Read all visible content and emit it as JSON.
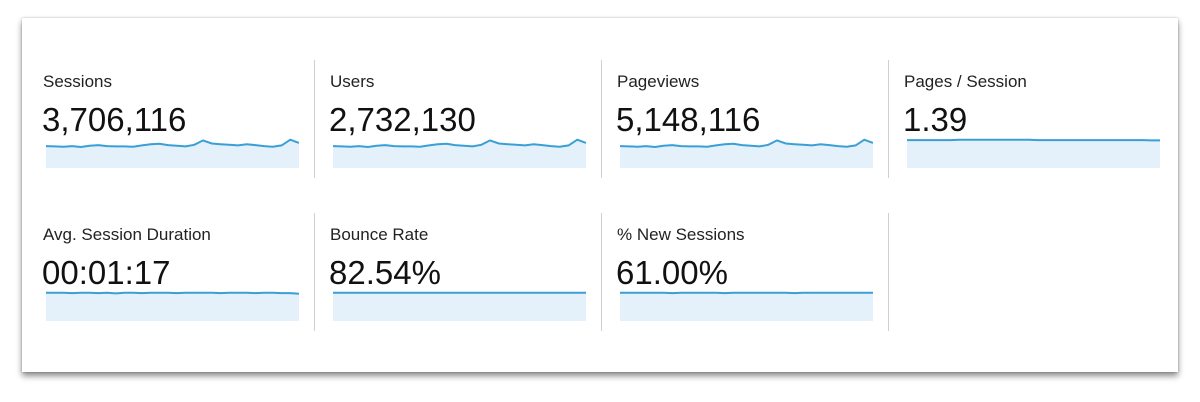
{
  "metrics": [
    {
      "label": "Sessions",
      "value": "3,706,116",
      "trend": [
        66,
        65,
        64,
        66,
        63,
        67,
        69,
        66,
        65,
        65,
        64,
        68,
        72,
        73,
        69,
        67,
        65,
        70,
        84,
        74,
        72,
        70,
        68,
        72,
        69,
        66,
        64,
        68,
        86,
        76
      ]
    },
    {
      "label": "Users",
      "value": "2,732,130",
      "trend": [
        66,
        65,
        64,
        66,
        63,
        67,
        69,
        66,
        65,
        65,
        64,
        68,
        72,
        73,
        69,
        67,
        65,
        70,
        84,
        74,
        72,
        70,
        68,
        72,
        69,
        66,
        64,
        68,
        86,
        76
      ]
    },
    {
      "label": "Pageviews",
      "value": "5,148,116",
      "trend": [
        66,
        65,
        64,
        66,
        63,
        67,
        69,
        66,
        65,
        65,
        64,
        68,
        72,
        73,
        69,
        67,
        65,
        70,
        84,
        74,
        72,
        70,
        68,
        72,
        69,
        66,
        64,
        68,
        86,
        76
      ]
    },
    {
      "label": "Pages / Session",
      "value": "1.39",
      "trend": [
        80,
        80,
        80,
        80,
        80,
        80,
        81,
        81,
        81,
        81,
        81,
        81,
        81,
        81,
        81,
        80,
        80,
        80,
        80,
        80,
        80,
        80,
        80,
        80,
        80,
        80,
        80,
        80,
        79,
        79
      ]
    },
    {
      "label": "Avg. Session Duration",
      "value": "00:01:17",
      "trend": [
        80,
        80,
        80,
        79,
        80,
        80,
        79,
        80,
        78,
        80,
        80,
        79,
        80,
        80,
        80,
        79,
        80,
        80,
        80,
        80,
        79,
        80,
        80,
        80,
        79,
        80,
        80,
        79,
        79,
        77
      ]
    },
    {
      "label": "Bounce Rate",
      "value": "82.54%",
      "trend": [
        80,
        80,
        80,
        80,
        80,
        80,
        80,
        80,
        80,
        80,
        80,
        80,
        80,
        80,
        80,
        80,
        80,
        80,
        80,
        80,
        80,
        80,
        80,
        80,
        80,
        80,
        80,
        80,
        80,
        80
      ]
    },
    {
      "label": "% New Sessions",
      "value": "61.00%",
      "trend": [
        80,
        80,
        80,
        80,
        80,
        80,
        79,
        80,
        80,
        80,
        80,
        80,
        79,
        80,
        80,
        80,
        80,
        80,
        80,
        80,
        79,
        80,
        80,
        80,
        80,
        80,
        80,
        80,
        80,
        80
      ]
    }
  ]
}
